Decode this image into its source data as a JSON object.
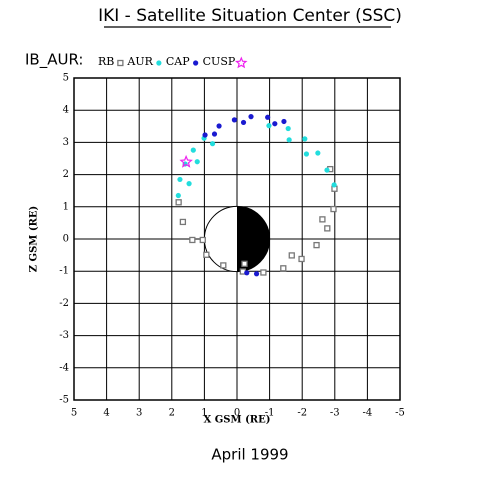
{
  "chart_data": {
    "type": "scatter",
    "title": "IKI - Satellite Situation Center (SSC)",
    "legend_title": "IB_AUR:",
    "xlabel": "X GSM (RE)",
    "ylabel": "Z GSM (RE)",
    "footer": "April    1999",
    "xlim": [
      5,
      -5
    ],
    "ylim": [
      -5,
      5
    ],
    "xticks": [
      5,
      4,
      3,
      2,
      1,
      0,
      -1,
      -2,
      -3,
      -4,
      -5
    ],
    "yticks": [
      5,
      4,
      3,
      2,
      1,
      0,
      -1,
      -2,
      -3,
      -4,
      -5
    ],
    "grid": true,
    "series": [
      {
        "name": "RB",
        "color": "#777777",
        "marker": "square",
        "x": [
          -2.86,
          -2.99,
          -2.96,
          -2.77,
          -2.44,
          -1.98,
          -1.42,
          -0.81,
          -0.18,
          0.42,
          0.94,
          1.37,
          1.66,
          1.79,
          -2.62,
          -1.68,
          -0.23,
          1.05
        ],
        "values": [
          2.17,
          1.56,
          0.93,
          0.33,
          -0.19,
          -0.62,
          -0.91,
          -1.04,
          -1.01,
          -0.82,
          -0.49,
          -0.03,
          0.53,
          1.14,
          0.61,
          -0.51,
          -0.77,
          -0.03
        ]
      },
      {
        "name": "AUR",
        "color": "#22dddd",
        "marker": "circle",
        "x": [
          1.8,
          1.75,
          1.59,
          1.34,
          1.01,
          1.47,
          1.22,
          0.75,
          -0.98,
          -1.57,
          -2.08,
          -2.48,
          -2.76,
          -2.98,
          -1.6,
          -2.13
        ],
        "values": [
          1.35,
          1.85,
          2.33,
          2.76,
          3.13,
          1.72,
          2.4,
          2.96,
          3.52,
          3.43,
          3.11,
          2.67,
          2.14,
          1.68,
          3.08,
          2.64
        ]
      },
      {
        "name": "CAP",
        "color": "#1a1ad0",
        "marker": "circle",
        "x": [
          0.98,
          0.55,
          0.08,
          -0.43,
          -0.94,
          -1.44,
          0.69,
          -0.2,
          -1.16,
          -0.3,
          -0.6
        ],
        "values": [
          3.23,
          3.51,
          3.7,
          3.8,
          3.78,
          3.65,
          3.26,
          3.62,
          3.58,
          -1.05,
          -1.08
        ]
      },
      {
        "name": "CUSP",
        "color": "#ee22ee",
        "marker": "star",
        "x": [
          1.56
        ],
        "values": [
          2.39
        ]
      }
    ]
  }
}
